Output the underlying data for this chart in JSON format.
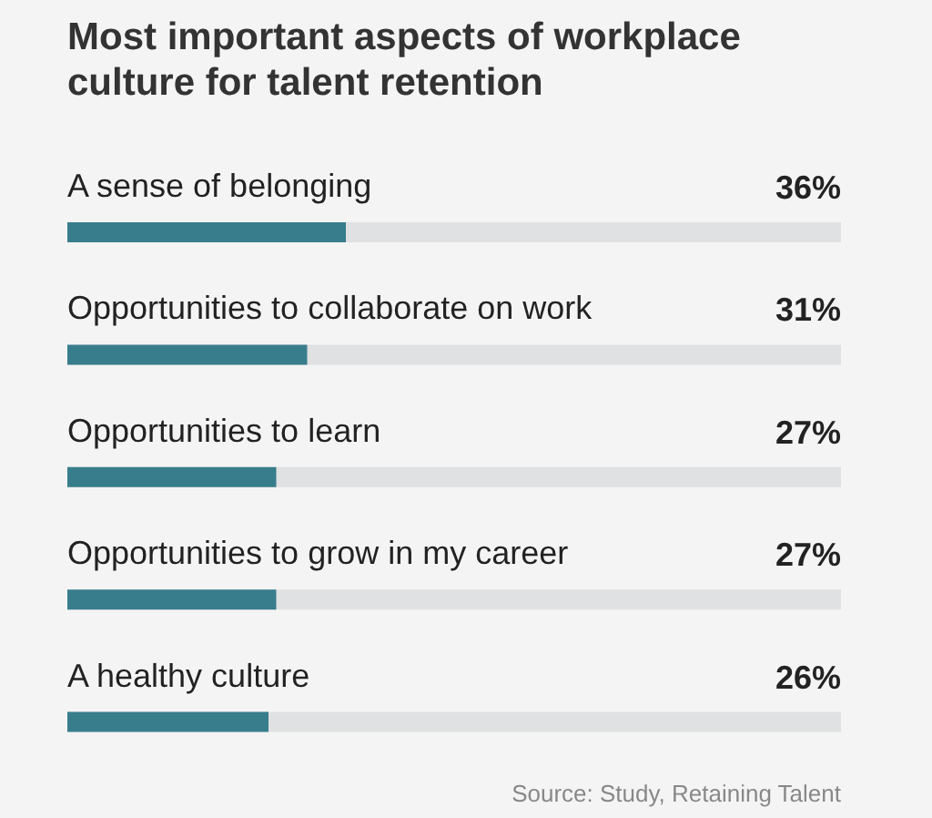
{
  "chart_data": {
    "type": "bar",
    "orientation": "horizontal",
    "title": "Most important aspects of workplace culture for talent retention",
    "categories": [
      "A sense of belonging",
      "Opportunities to collaborate on work",
      "Opportunities to learn",
      "Opportunities to grow in my career",
      "A healthy culture"
    ],
    "values": [
      36,
      31,
      27,
      27,
      26
    ],
    "value_labels": [
      "36%",
      "31%",
      "27%",
      "27%",
      "26%"
    ],
    "color": "#387d8c",
    "xlim": [
      0,
      100
    ],
    "annotations": [
      "Source: Study, Retaining Talent"
    ]
  }
}
